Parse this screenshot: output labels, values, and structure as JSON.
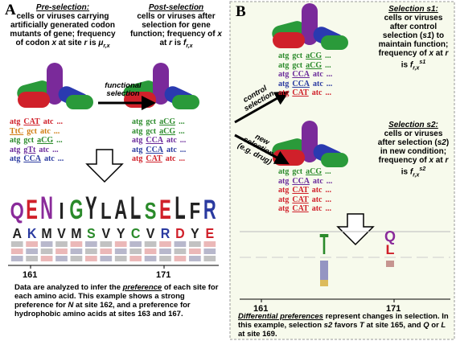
{
  "panel_a": {
    "label": "A",
    "pre": {
      "title": "Pre-selection:",
      "text": [
        "cells or viruses carrying artificially generated codon mutants of gene; frequency of codon ",
        "x",
        " at site ",
        "r",
        " is ",
        "μ",
        "r,x"
      ],
      "codons": [
        {
          "words": [
            "atg",
            "CAT",
            "atc",
            "..."
          ],
          "color": "#d0202a"
        },
        {
          "words": [
            "TtC",
            "gct",
            "atc",
            "..."
          ],
          "color": "#d07a10"
        },
        {
          "words": [
            "atg",
            "gct",
            "aCG",
            "..."
          ],
          "color": "#2a8a2a"
        },
        {
          "words": [
            "atg",
            "gTt",
            "atc",
            "..."
          ],
          "color": "#6a2a9a"
        },
        {
          "words": [
            "atg",
            "CCA",
            "atc",
            "..."
          ],
          "color": "#2a3aa0"
        }
      ]
    },
    "arrow_label": "functional selection",
    "post": {
      "title": "Post-selection",
      "text": [
        "cells or viruses after selection for gene function; frequency of ",
        "x",
        " at ",
        "r",
        " is ",
        "f",
        "r,x"
      ],
      "codons": [
        {
          "words": [
            "atg",
            "gct",
            "aCG",
            "..."
          ],
          "color": "#2a8a2a"
        },
        {
          "words": [
            "atg",
            "gct",
            "aCG",
            "..."
          ],
          "color": "#2a8a2a"
        },
        {
          "words": [
            "atg",
            "CCA",
            "atc",
            "..."
          ],
          "color": "#6a2a9a"
        },
        {
          "words": [
            "atg",
            "CCA",
            "atc",
            "..."
          ],
          "color": "#2a3aa0"
        },
        {
          "words": [
            "atg",
            "CAT",
            "atc",
            "..."
          ],
          "color": "#d0202a"
        }
      ]
    },
    "logo": {
      "top": [
        "Q",
        "E",
        "N",
        "I",
        "G",
        "Y",
        "L",
        "A",
        "L",
        "S",
        "E",
        "L",
        "F",
        "R"
      ],
      "top_colors": [
        "#8a2a9a",
        "#d0202a",
        "#8a2a9a",
        "#222222",
        "#2a8a2a",
        "#222222",
        "#222222",
        "#222222",
        "#222222",
        "#2a8a2a",
        "#d0202a",
        "#222222",
        "#222222",
        "#2a3aa0"
      ],
      "second": [
        "A",
        "K",
        "M",
        "V",
        "M",
        "S",
        "V",
        "Y",
        "C",
        "V",
        "R",
        "D",
        "Y",
        "E"
      ],
      "second_colors": [
        "#222222",
        "#2a3aa0",
        "#222222",
        "#222222",
        "#222222",
        "#2a8a2a",
        "#222222",
        "#222222",
        "#2a8a2a",
        "#222222",
        "#2a3aa0",
        "#d0202a",
        "#222222",
        "#d0202a"
      ],
      "axis": [
        "161",
        "171"
      ]
    },
    "caption": [
      "Data are analyzed to infer the ",
      "preference",
      " of each site for each amino acid. This example shows a strong preference for ",
      "N",
      " at site 162, and a preference for hydrophobic amino acids at sites 163 and 167."
    ]
  },
  "panel_b": {
    "label": "B",
    "control_label": "control selection",
    "new_label": "new selection (e.g. drug)",
    "s1": {
      "title": "Selection s1:",
      "text": [
        "cells or viruses after control selection (",
        "s1",
        ") to maintain function; frequency of ",
        "x",
        " at ",
        "r",
        " is ",
        "f",
        "r,x",
        "s1"
      ],
      "codons": [
        {
          "words": [
            "atg",
            "gct",
            "aCG",
            "..."
          ],
          "color": "#2a8a2a"
        },
        {
          "words": [
            "atg",
            "gct",
            "aCG",
            "..."
          ],
          "color": "#2a8a2a"
        },
        {
          "words": [
            "atg",
            "CCA",
            "atc",
            "..."
          ],
          "color": "#6a2a9a"
        },
        {
          "words": [
            "atg",
            "CCA",
            "atc",
            "..."
          ],
          "color": "#2a3aa0"
        },
        {
          "words": [
            "atg",
            "CAT",
            "atc",
            "..."
          ],
          "color": "#d0202a"
        }
      ]
    },
    "s2": {
      "title": "Selection s2:",
      "text": [
        "cells or viruses after selection (",
        "s2",
        ") in new condition; frequency of ",
        "x",
        " at ",
        "r",
        " is ",
        "f",
        "r,x",
        "s2"
      ],
      "codons": [
        {
          "words": [
            "atg",
            "gct",
            "aCG",
            "..."
          ],
          "color": "#2a8a2a"
        },
        {
          "words": [
            "atg",
            "CCA",
            "atc",
            "..."
          ],
          "color": "#6a2a9a"
        },
        {
          "words": [
            "atg",
            "CAT",
            "atc",
            "..."
          ],
          "color": "#d0202a"
        },
        {
          "words": [
            "atg",
            "CAT",
            "atc",
            "..."
          ],
          "color": "#d0202a"
        },
        {
          "words": [
            "atg",
            "CAT",
            "atc",
            "..."
          ],
          "color": "#d0202a"
        }
      ]
    },
    "logo": {
      "letters": [
        "T",
        "Q",
        "L"
      ],
      "colors": [
        "#2a8a2a",
        "#8a2a9a",
        "#d0202a"
      ],
      "axis": [
        "161",
        "171"
      ]
    },
    "caption": [
      "Differential preferences",
      " represent changes in selection. In this example, selection ",
      "s2",
      " favors ",
      "T",
      " at site 165, and ",
      "Q",
      " or ",
      "L",
      " at site 169."
    ]
  }
}
